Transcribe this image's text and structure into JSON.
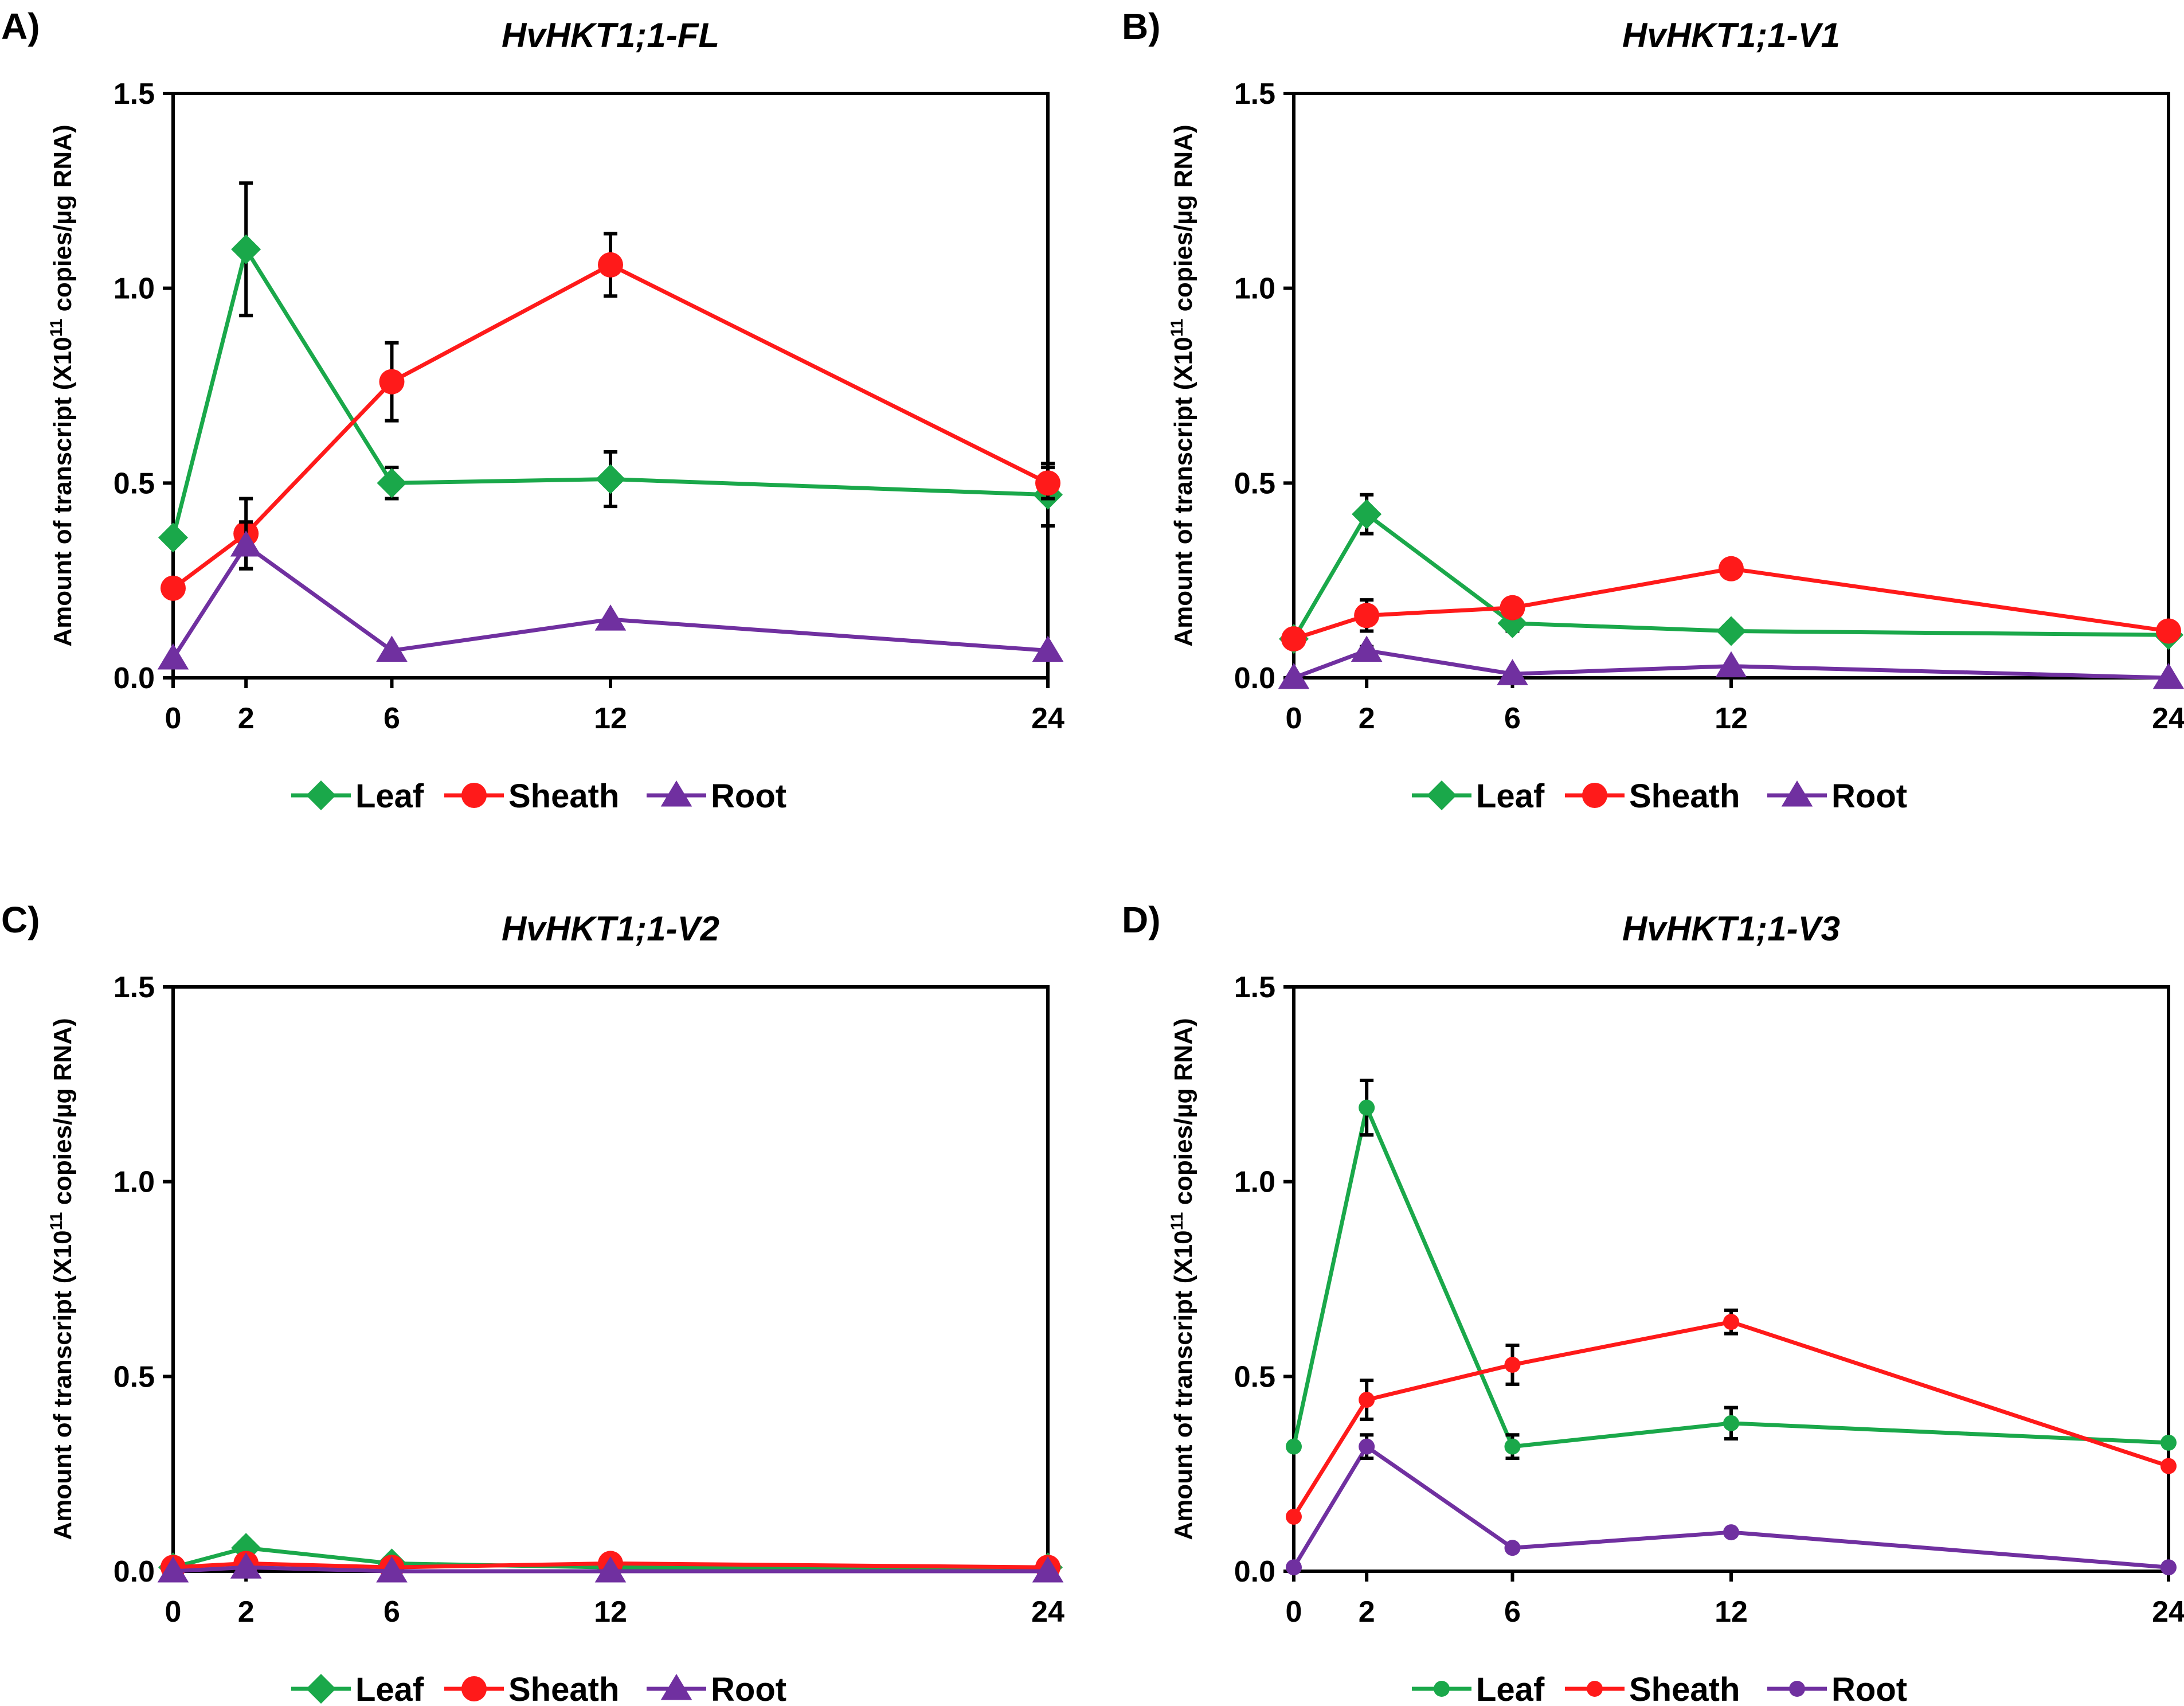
{
  "colors": {
    "leaf": "#1aa84a",
    "sheath": "#ff1a1a",
    "root": "#7030a0",
    "axis": "#000000"
  },
  "legend_labels": [
    "Leaf",
    "Sheath",
    "Root"
  ],
  "ylabel_main": "Amount of transcript (X10",
  "ylabel_sup": "11",
  "ylabel_end": " copies/µg RNA)",
  "chart_data": [
    {
      "type": "line",
      "panel": "A)",
      "title": "HvHKT1;1-FL",
      "x": [
        0,
        2,
        6,
        12,
        24
      ],
      "xticks": [
        "0",
        "2",
        "6",
        "12",
        "24"
      ],
      "ylim": [
        0,
        1.5
      ],
      "yticks": [
        "0.0",
        "0.5",
        "1.0",
        "1.5"
      ],
      "ylabel": "Amount of transcript (X10^11 copies/µg RNA)",
      "xlabel": "",
      "marker_style": "large",
      "series": [
        {
          "name": "Leaf",
          "marker": "diamond",
          "values": [
            0.36,
            1.1,
            0.5,
            0.51,
            0.47
          ],
          "errors": [
            0,
            0.17,
            0.04,
            0.07,
            0.08
          ]
        },
        {
          "name": "Sheath",
          "marker": "circle",
          "values": [
            0.23,
            0.37,
            0.76,
            1.06,
            0.5
          ],
          "errors": [
            0,
            0.09,
            0.1,
            0.08,
            0.04
          ]
        },
        {
          "name": "Root",
          "marker": "triangle",
          "values": [
            0.05,
            0.34,
            0.07,
            0.15,
            0.07
          ],
          "errors": [
            0,
            0.06,
            0,
            0,
            0
          ]
        }
      ]
    },
    {
      "type": "line",
      "panel": "B)",
      "title": "HvHKT1;1-V1",
      "x": [
        0,
        2,
        6,
        12,
        24
      ],
      "xticks": [
        "0",
        "2",
        "6",
        "12",
        "24"
      ],
      "ylim": [
        0,
        1.5
      ],
      "yticks": [
        "0.0",
        "0.5",
        "1.0",
        "1.5"
      ],
      "ylabel": "Amount of transcript (X10^11 copies/µg RNA)",
      "xlabel": "",
      "marker_style": "large",
      "series": [
        {
          "name": "Leaf",
          "marker": "diamond",
          "values": [
            0.1,
            0.42,
            0.14,
            0.12,
            0.11
          ],
          "errors": [
            0,
            0.05,
            0.02,
            0,
            0
          ]
        },
        {
          "name": "Sheath",
          "marker": "circle",
          "values": [
            0.1,
            0.16,
            0.18,
            0.28,
            0.12
          ],
          "errors": [
            0,
            0.04,
            0.02,
            0.02,
            0.01
          ]
        },
        {
          "name": "Root",
          "marker": "triangle",
          "values": [
            0.0,
            0.07,
            0.01,
            0.03,
            0.0
          ],
          "errors": [
            0,
            0.01,
            0,
            0,
            0
          ]
        }
      ]
    },
    {
      "type": "line",
      "panel": "C)",
      "title": "HvHKT1;1-V2",
      "x": [
        0,
        2,
        6,
        12,
        24
      ],
      "xticks": [
        "0",
        "2",
        "6",
        "12",
        "24"
      ],
      "ylim": [
        0,
        1.5
      ],
      "yticks": [
        "0.0",
        "0.5",
        "1.0",
        "1.5"
      ],
      "ylabel": "Amount of transcript (X10^11 copies/µg RNA)",
      "xlabel": "",
      "marker_style": "large",
      "series": [
        {
          "name": "Leaf",
          "marker": "diamond",
          "values": [
            0.01,
            0.06,
            0.02,
            0.01,
            0.01
          ],
          "errors": [
            0,
            0,
            0,
            0,
            0
          ]
        },
        {
          "name": "Sheath",
          "marker": "circle",
          "values": [
            0.01,
            0.02,
            0.01,
            0.02,
            0.01
          ],
          "errors": [
            0,
            0,
            0,
            0,
            0
          ]
        },
        {
          "name": "Root",
          "marker": "triangle",
          "values": [
            0.0,
            0.01,
            0.0,
            0.0,
            0.0
          ],
          "errors": [
            0,
            0,
            0,
            0,
            0
          ]
        }
      ]
    },
    {
      "type": "line",
      "panel": "D)",
      "title": "HvHKT1;1-V3",
      "x": [
        0,
        2,
        6,
        12,
        24
      ],
      "xticks": [
        "0",
        "2",
        "6",
        "12",
        "24"
      ],
      "ylim": [
        0,
        1.5
      ],
      "yticks": [
        "0.0",
        "0.5",
        "1.0",
        "1.5"
      ],
      "ylabel": "Amount of transcript (X10^11 copies/µg RNA)",
      "xlabel": "",
      "marker_style": "small",
      "series": [
        {
          "name": "Leaf",
          "marker": "circle",
          "values": [
            0.32,
            1.19,
            0.32,
            0.38,
            0.33
          ],
          "errors": [
            0,
            0.07,
            0.03,
            0.04,
            0
          ]
        },
        {
          "name": "Sheath",
          "marker": "circle",
          "values": [
            0.14,
            0.44,
            0.53,
            0.64,
            0.27
          ],
          "errors": [
            0,
            0.05,
            0.05,
            0.03,
            0
          ]
        },
        {
          "name": "Root",
          "marker": "circle",
          "values": [
            0.01,
            0.32,
            0.06,
            0.1,
            0.01
          ],
          "errors": [
            0,
            0.03,
            0,
            0,
            0
          ]
        }
      ]
    }
  ]
}
